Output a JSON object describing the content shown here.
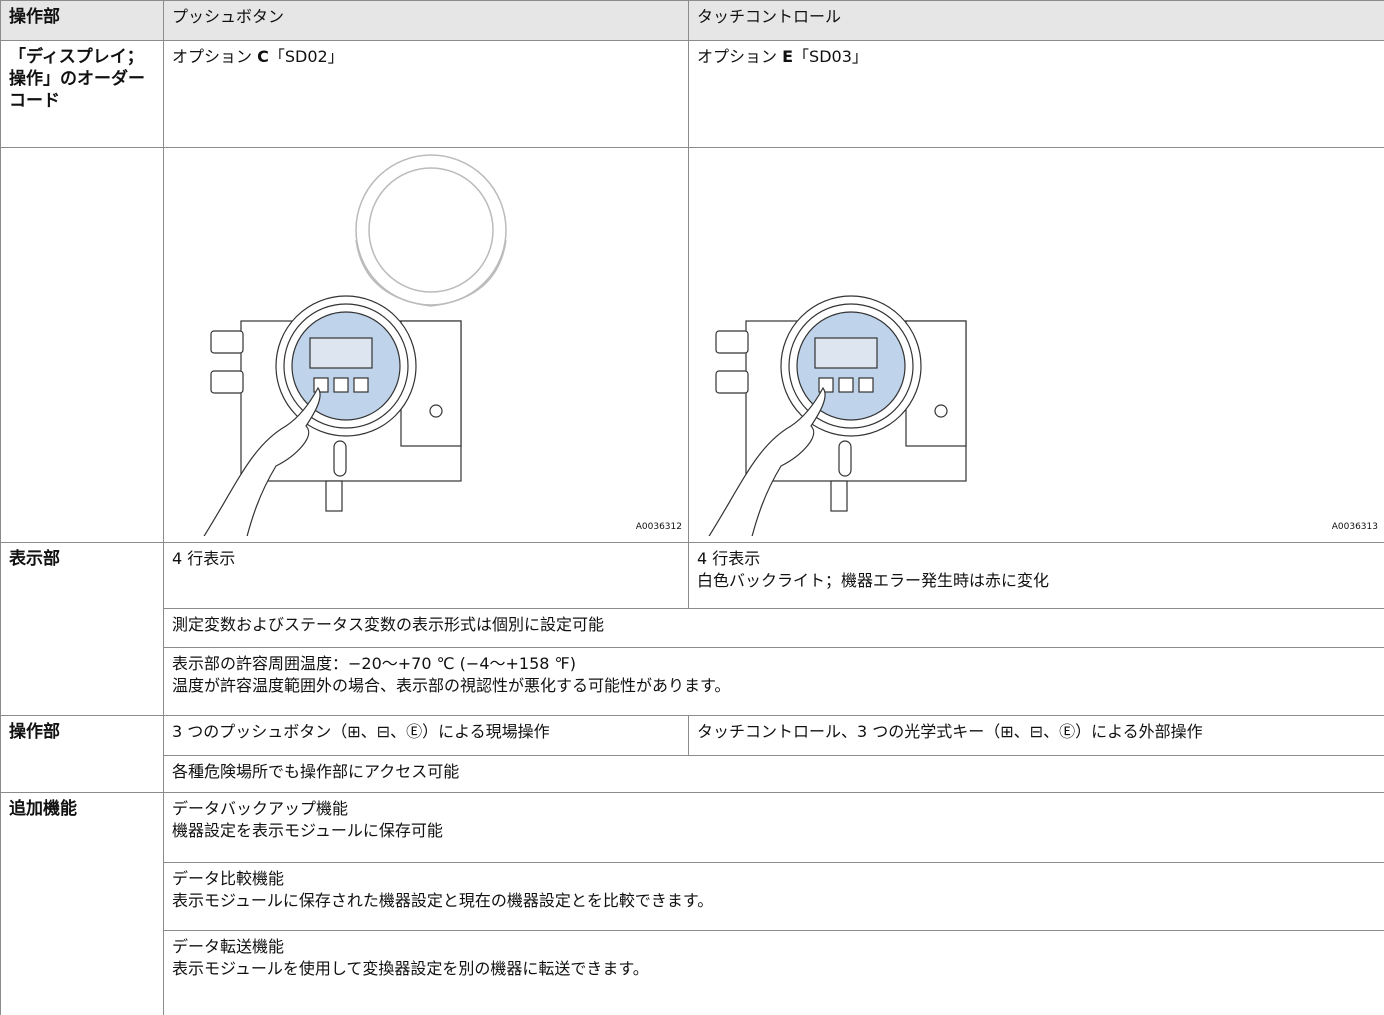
{
  "table": {
    "header": [
      "操作部",
      "プッシュボタン",
      "タッチコントロール"
    ],
    "order_code": {
      "label": "「ディスプレイ；操作」のオーダーコード",
      "option_c": {
        "prefix": "オプション ",
        "code": "C",
        "suffix": "「SD02」"
      },
      "option_e": {
        "prefix": "オプション ",
        "code": "E",
        "suffix": "「SD03」"
      }
    },
    "figures": [
      "A0036312",
      "A0036313"
    ],
    "display": {
      "label": "表示部",
      "push_button": [
        "4 行表示"
      ],
      "touch": [
        "4 行表示",
        "白色バックライト；機器エラー発生時は赤に変化"
      ],
      "notes": [
        [
          "測定変数およびステータス変数の表示形式は個別に設定可能"
        ],
        [
          "表示部の許容周囲温度：−20～+70 ℃ (−4～+158 ℉)",
          "温度が許容温度範囲外の場合、表示部の視認性が悪化する可能性があります。"
        ]
      ]
    },
    "operation": {
      "label": "操作部",
      "push_button": "3 つのプッシュボタン（⊞、⊟、Ⓔ）による現場操作",
      "touch": "タッチコントロール、3 つの光学式キー（⊞、⊟、Ⓔ）による外部操作",
      "note": "各種危険場所でも操作部にアクセス可能"
    },
    "additional": {
      "label": "追加機能",
      "items": [
        [
          "データバックアップ機能",
          "機器設定を表示モジュールに保存可能"
        ],
        [
          "データ比較機能",
          "表示モジュールに保存された機器設定と現在の機器設定とを比較できます。"
        ],
        [
          "データ転送機能",
          "表示モジュールを使用して変換器設定を別の機器に転送できます。"
        ]
      ]
    }
  }
}
